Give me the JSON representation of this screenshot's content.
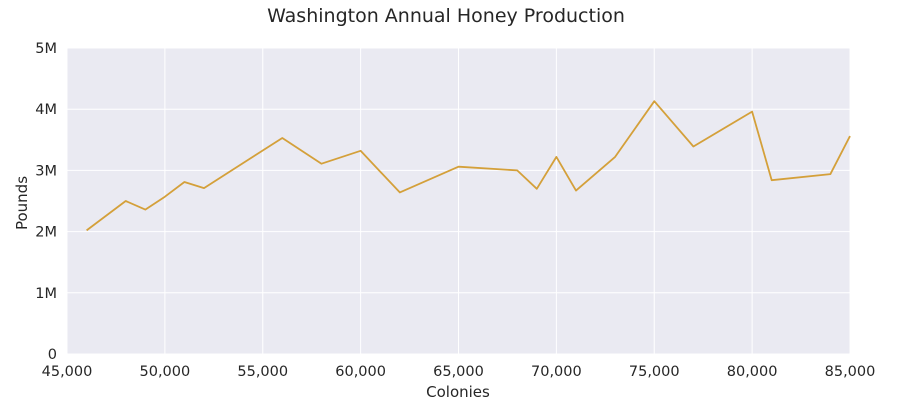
{
  "chart_data": {
    "type": "line",
    "title": "Washington Annual Honey Production",
    "xlabel": "Colonies",
    "ylabel": "Pounds",
    "xlim": [
      45000,
      85000
    ],
    "ylim": [
      0,
      5000000
    ],
    "grid": true,
    "legend": null,
    "line_color": "#d4a03a",
    "background_color": "#eaeaf2",
    "grid_color": "#ffffff",
    "x_ticks": [
      45000,
      50000,
      55000,
      60000,
      65000,
      70000,
      75000,
      80000,
      85000
    ],
    "x_tick_labels": [
      "45,000",
      "50,000",
      "55,000",
      "60,000",
      "65,000",
      "70,000",
      "75,000",
      "80,000",
      "85,000"
    ],
    "y_ticks": [
      0,
      1000000,
      2000000,
      3000000,
      4000000,
      5000000
    ],
    "y_tick_labels": [
      "0",
      "1M",
      "2M",
      "3M",
      "4M",
      "5M"
    ],
    "series": [
      {
        "name": "Washington",
        "x": [
          46000,
          48000,
          49000,
          50000,
          51000,
          52000,
          56000,
          58000,
          60000,
          62000,
          65000,
          68000,
          69000,
          70000,
          71000,
          73000,
          75000,
          77000,
          80000,
          81000,
          84000,
          85000
        ],
        "values": [
          2020000,
          2500000,
          2360000,
          2570000,
          2810000,
          2710000,
          3530000,
          3110000,
          3320000,
          2640000,
          3060000,
          3000000,
          2700000,
          3220000,
          2670000,
          3220000,
          4130000,
          3390000,
          3960000,
          2840000,
          2940000,
          3560000
        ]
      }
    ]
  }
}
